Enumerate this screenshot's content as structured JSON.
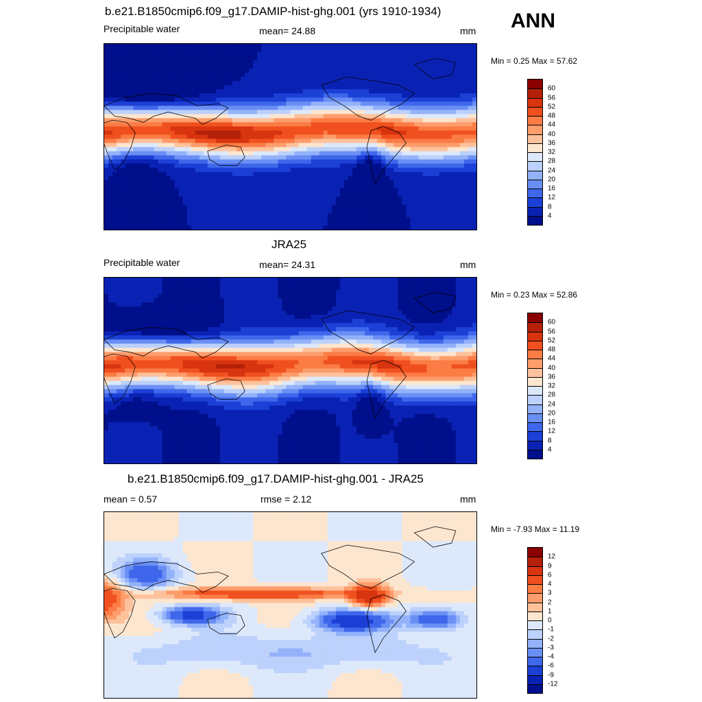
{
  "season": "ANN",
  "panels": [
    {
      "title": "b.e21.B1850cmip6.f09_g17.DAMIP-hist-ghg.001 (yrs 1910-1934)",
      "left_text": "Precipitable water",
      "center_text": "mean=  24.88",
      "right_text": "mm",
      "minmax": "Min =   0.25 Max =  57.62",
      "palette": "absolute",
      "field": "model"
    },
    {
      "title": "JRA25",
      "left_text": "Precipitable water",
      "center_text": "mean=  24.31",
      "right_text": "mm",
      "minmax": "Min =   0.23 Max =  52.86",
      "palette": "absolute",
      "field": "obs"
    },
    {
      "title": "b.e21.B1850cmip6.f09_g17.DAMIP-hist-ghg.001 - JRA25",
      "left_text": "mean =   0.57",
      "center_text": "rmse =   2.12",
      "right_text": "mm",
      "minmax": "Min =  -7.93 Max =  11.19",
      "palette": "difference",
      "field": "diff"
    }
  ],
  "colorbars": {
    "absolute": {
      "labels": [
        "60",
        "56",
        "52",
        "48",
        "44",
        "40",
        "36",
        "32",
        "28",
        "24",
        "20",
        "16",
        "12",
        "8",
        "4"
      ],
      "colors": [
        "#8b0000",
        "#b5200a",
        "#d8340f",
        "#f0501f",
        "#fb7c45",
        "#fd9d6c",
        "#fdc29c",
        "#fde6cf",
        "#dde9fb",
        "#bcd1fb",
        "#93b2fa",
        "#6a8ff4",
        "#3f67eb",
        "#1c40d6",
        "#0a22b4",
        "#000f8b"
      ]
    },
    "difference": {
      "labels": [
        "12",
        "9",
        "6",
        "4",
        "3",
        "2",
        "1",
        "0",
        "-1",
        "-2",
        "-3",
        "-4",
        "-6",
        "-9",
        "-12"
      ],
      "colors": [
        "#8b0000",
        "#b5200a",
        "#d8340f",
        "#f0501f",
        "#fb7c45",
        "#fd9d6c",
        "#fdc29c",
        "#fde6cf",
        "#dde9fb",
        "#bcd1fb",
        "#93b2fa",
        "#6a8ff4",
        "#3f67eb",
        "#1c40d6",
        "#0a22b4",
        "#000f8b"
      ]
    }
  }
}
